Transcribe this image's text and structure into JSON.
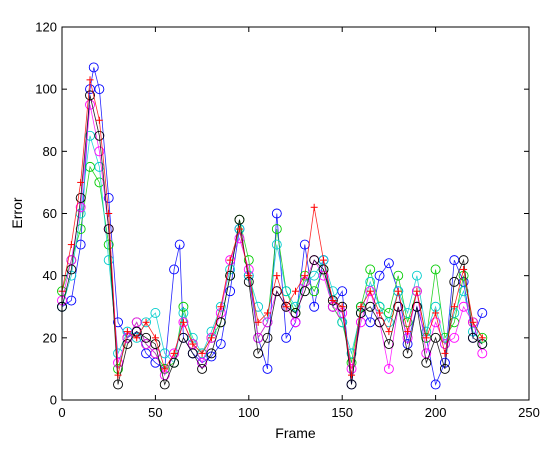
{
  "chart_data": {
    "type": "line",
    "title": "",
    "xlabel": "Frame",
    "ylabel": "Error",
    "xlim": [
      0,
      250
    ],
    "ylim": [
      0,
      120
    ],
    "xticks": [
      "0",
      "50",
      "100",
      "150",
      "200",
      "250"
    ],
    "yticks": [
      "0",
      "20",
      "40",
      "60",
      "80",
      "100",
      "120"
    ],
    "grid": false,
    "legend": "none",
    "series": [
      {
        "color": "#0000ff",
        "marker": "circle",
        "x": [
          0,
          5,
          10,
          15,
          17,
          20,
          25,
          30,
          35,
          40,
          45,
          50,
          55,
          60,
          63,
          65,
          70,
          75,
          80,
          85,
          90,
          95,
          100,
          105,
          110,
          115,
          120,
          125,
          130,
          135,
          140,
          145,
          150,
          155,
          160,
          165,
          170,
          175,
          180,
          185,
          190,
          195,
          200,
          205,
          210,
          215,
          220,
          225
        ],
        "y": [
          30,
          32,
          50,
          100,
          107,
          100,
          65,
          25,
          20,
          22,
          15,
          12,
          10,
          42,
          50,
          20,
          15,
          12,
          14,
          18,
          35,
          55,
          40,
          20,
          10,
          60,
          20,
          25,
          50,
          30,
          45,
          30,
          35,
          5,
          30,
          25,
          40,
          44,
          35,
          18,
          30,
          20,
          5,
          12,
          45,
          38,
          20,
          28
        ]
      },
      {
        "color": "#00cc00",
        "marker": "circle",
        "x": [
          0,
          5,
          10,
          15,
          20,
          25,
          30,
          35,
          40,
          45,
          50,
          55,
          60,
          65,
          70,
          75,
          80,
          85,
          90,
          95,
          100,
          105,
          110,
          115,
          120,
          125,
          130,
          135,
          140,
          145,
          150,
          155,
          160,
          165,
          170,
          175,
          180,
          185,
          190,
          195,
          200,
          205,
          210,
          215,
          220,
          225
        ],
        "y": [
          35,
          45,
          55,
          75,
          70,
          50,
          10,
          20,
          25,
          18,
          15,
          10,
          12,
          30,
          18,
          15,
          20,
          25,
          40,
          58,
          45,
          20,
          25,
          55,
          35,
          28,
          40,
          35,
          42,
          30,
          25,
          12,
          30,
          42,
          30,
          28,
          40,
          25,
          35,
          20,
          42,
          20,
          25,
          40,
          25,
          20
        ]
      },
      {
        "color": "#00cccc",
        "marker": "circle",
        "x": [
          0,
          5,
          10,
          15,
          20,
          25,
          30,
          35,
          40,
          45,
          50,
          55,
          60,
          65,
          70,
          75,
          80,
          85,
          90,
          95,
          100,
          105,
          110,
          115,
          120,
          125,
          130,
          135,
          140,
          145,
          150,
          155,
          160,
          165,
          170,
          175,
          180,
          185,
          190,
          195,
          200,
          205,
          210,
          215,
          220,
          225
        ],
        "y": [
          30,
          40,
          60,
          85,
          75,
          45,
          15,
          22,
          20,
          25,
          28,
          15,
          12,
          28,
          20,
          15,
          22,
          30,
          42,
          55,
          40,
          30,
          25,
          50,
          35,
          30,
          38,
          40,
          45,
          35,
          25,
          15,
          28,
          38,
          30,
          25,
          35,
          28,
          40,
          22,
          30,
          18,
          28,
          35,
          22,
          18
        ]
      },
      {
        "color": "#ff00ff",
        "marker": "circle",
        "x": [
          0,
          5,
          10,
          15,
          20,
          25,
          30,
          35,
          40,
          45,
          50,
          55,
          60,
          65,
          70,
          75,
          80,
          85,
          90,
          95,
          100,
          105,
          110,
          115,
          120,
          125,
          130,
          135,
          140,
          145,
          150,
          155,
          160,
          165,
          170,
          175,
          180,
          185,
          190,
          195,
          200,
          205,
          210,
          215,
          220,
          225
        ],
        "y": [
          32,
          45,
          62,
          95,
          80,
          55,
          12,
          20,
          25,
          18,
          15,
          8,
          15,
          25,
          18,
          12,
          20,
          28,
          45,
          52,
          42,
          20,
          25,
          35,
          30,
          25,
          38,
          45,
          40,
          30,
          28,
          10,
          25,
          35,
          25,
          10,
          30,
          20,
          35,
          15,
          25,
          18,
          20,
          30,
          25,
          15
        ]
      },
      {
        "color": "#000000",
        "marker": "circle",
        "x": [
          0,
          5,
          10,
          15,
          20,
          25,
          30,
          35,
          40,
          45,
          50,
          55,
          60,
          65,
          70,
          75,
          80,
          85,
          90,
          95,
          100,
          105,
          110,
          115,
          120,
          125,
          130,
          135,
          140,
          145,
          150,
          155,
          160,
          165,
          170,
          175,
          180,
          185,
          190,
          195,
          200,
          205,
          210,
          215,
          220,
          225
        ],
        "y": [
          30,
          42,
          65,
          98,
          85,
          55,
          5,
          18,
          22,
          20,
          18,
          5,
          12,
          20,
          15,
          10,
          15,
          25,
          40,
          58,
          38,
          15,
          20,
          35,
          30,
          28,
          35,
          45,
          42,
          32,
          30,
          5,
          28,
          30,
          25,
          18,
          30,
          15,
          30,
          12,
          20,
          10,
          38,
          45,
          20,
          18
        ]
      },
      {
        "color": "#ff0000",
        "marker": "cross",
        "x": [
          0,
          5,
          10,
          15,
          20,
          25,
          30,
          35,
          40,
          45,
          50,
          55,
          60,
          65,
          70,
          75,
          80,
          85,
          90,
          95,
          100,
          105,
          110,
          115,
          120,
          125,
          130,
          135,
          140,
          145,
          150,
          155,
          160,
          165,
          170,
          175,
          180,
          185,
          190,
          195,
          200,
          205,
          210,
          215,
          220,
          225
        ],
        "y": [
          35,
          50,
          70,
          103,
          90,
          60,
          8,
          22,
          20,
          25,
          20,
          10,
          15,
          25,
          18,
          15,
          20,
          30,
          45,
          55,
          40,
          25,
          28,
          40,
          30,
          35,
          40,
          62,
          45,
          32,
          30,
          8,
          30,
          35,
          28,
          22,
          35,
          22,
          35,
          20,
          28,
          15,
          30,
          42,
          25,
          20
        ]
      }
    ]
  }
}
